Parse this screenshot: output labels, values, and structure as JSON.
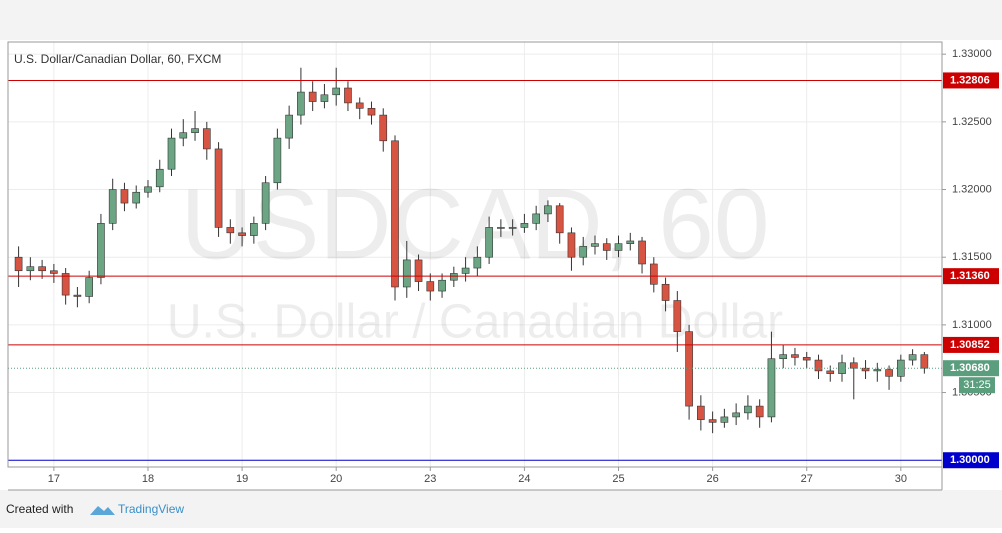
{
  "chart_data": {
    "type": "candlestick",
    "title": "U.S. Dollar/Canadian Dollar, 60, FXCM",
    "watermark": "USDCAD, 60",
    "watermark_sub": "U.S. Dollar / Canadian Dollar",
    "up_color": "#6ba583",
    "down_color": "#d75442",
    "xlim": [
      -11.7,
      226.5
    ],
    "xticks": [
      {
        "value": 0,
        "label": "17"
      },
      {
        "value": 24,
        "label": "18"
      },
      {
        "value": 48,
        "label": "19"
      },
      {
        "value": 72,
        "label": "20"
      },
      {
        "value": 96,
        "label": "23"
      },
      {
        "value": 120,
        "label": "24"
      },
      {
        "value": 144,
        "label": "25"
      },
      {
        "value": 168,
        "label": "26"
      },
      {
        "value": 192,
        "label": "27"
      },
      {
        "value": 216,
        "label": "30"
      }
    ],
    "ylim": [
      1.2995,
      1.3309
    ],
    "yticks": [
      {
        "value": 1.33,
        "label": "1.33000"
      },
      {
        "value": 1.325,
        "label": "1.32500"
      },
      {
        "value": 1.32,
        "label": "1.32000"
      },
      {
        "value": 1.315,
        "label": "1.31500"
      },
      {
        "value": 1.31,
        "label": "1.31000"
      },
      {
        "value": 1.305,
        "label": "1.30500"
      }
    ],
    "grid": true,
    "hlines": [
      {
        "value": 1.32806,
        "label": "1.32806",
        "color": "#cc0000"
      },
      {
        "value": 1.3136,
        "label": "1.31360",
        "color": "#cc0000"
      },
      {
        "value": 1.30852,
        "label": "1.30852",
        "color": "#cc0000"
      },
      {
        "value": 1.3,
        "label": "1.30000",
        "color": "#0000cc"
      }
    ],
    "last_price": {
      "value": 1.3068,
      "label": "1.30680",
      "color": "#5a9e7e"
    },
    "countdown": "31:25",
    "candles": {
      "x": [
        -9,
        -6,
        -3,
        0,
        3,
        6,
        9,
        12,
        15,
        18,
        21,
        24,
        27,
        30,
        33,
        36,
        39,
        42,
        45,
        48,
        51,
        54,
        57,
        60,
        63,
        66,
        69,
        72,
        75,
        78,
        81,
        84,
        87,
        90,
        93,
        96,
        99,
        102,
        105,
        108,
        111,
        114,
        117,
        120,
        123,
        126,
        129,
        132,
        135,
        138,
        141,
        144,
        147,
        150,
        153,
        156,
        159,
        162,
        165,
        168,
        171,
        174,
        177,
        180,
        183,
        186,
        189,
        192,
        195,
        198,
        201,
        204,
        207,
        210,
        213,
        216,
        219,
        222
      ],
      "open": [
        1.315,
        1.314,
        1.3143,
        1.314,
        1.3138,
        1.3122,
        1.3121,
        1.3135,
        1.3175,
        1.32,
        1.319,
        1.3198,
        1.3202,
        1.3215,
        1.3238,
        1.3242,
        1.3245,
        1.323,
        1.3172,
        1.3168,
        1.3166,
        1.3175,
        1.3205,
        1.3238,
        1.3255,
        1.3272,
        1.3265,
        1.327,
        1.3275,
        1.3264,
        1.326,
        1.3255,
        1.3236,
        1.3128,
        1.3148,
        1.3132,
        1.3125,
        1.3133,
        1.3138,
        1.3142,
        1.315,
        1.3172,
        1.3172,
        1.3172,
        1.3175,
        1.3182,
        1.3188,
        1.3168,
        1.315,
        1.3158,
        1.316,
        1.3155,
        1.316,
        1.3162,
        1.3145,
        1.313,
        1.3118,
        1.3095,
        1.304,
        1.303,
        1.3028,
        1.3032,
        1.3035,
        1.304,
        1.3032,
        1.3075,
        1.3078,
        1.3076,
        1.3074,
        1.3066,
        1.3064,
        1.3072,
        1.3068,
        1.3066,
        1.3067,
        1.3062,
        1.3074,
        1.3078
      ],
      "high": [
        1.3158,
        1.315,
        1.3148,
        1.3145,
        1.3142,
        1.3128,
        1.314,
        1.3182,
        1.3208,
        1.3205,
        1.3203,
        1.3207,
        1.3222,
        1.3245,
        1.3252,
        1.3258,
        1.325,
        1.3235,
        1.3178,
        1.3172,
        1.318,
        1.321,
        1.3245,
        1.3262,
        1.329,
        1.328,
        1.3278,
        1.329,
        1.328,
        1.3268,
        1.3265,
        1.326,
        1.324,
        1.3162,
        1.3152,
        1.3138,
        1.3138,
        1.3143,
        1.315,
        1.3158,
        1.318,
        1.3178,
        1.3178,
        1.3182,
        1.3188,
        1.3192,
        1.319,
        1.3172,
        1.3165,
        1.3166,
        1.3164,
        1.3166,
        1.3168,
        1.3165,
        1.315,
        1.3135,
        1.3125,
        1.31,
        1.3048,
        1.3036,
        1.3038,
        1.3042,
        1.3048,
        1.3045,
        1.3095,
        1.3085,
        1.3083,
        1.308,
        1.3078,
        1.307,
        1.3078,
        1.3076,
        1.3074,
        1.3072,
        1.307,
        1.3078,
        1.3082,
        1.308
      ],
      "low": [
        1.3128,
        1.3133,
        1.3134,
        1.3131,
        1.3115,
        1.3113,
        1.3116,
        1.313,
        1.317,
        1.3184,
        1.3186,
        1.3194,
        1.3198,
        1.321,
        1.3232,
        1.3236,
        1.3222,
        1.3165,
        1.316,
        1.3158,
        1.316,
        1.317,
        1.32,
        1.323,
        1.3248,
        1.3258,
        1.326,
        1.3262,
        1.3258,
        1.3252,
        1.3248,
        1.3228,
        1.3118,
        1.312,
        1.3125,
        1.3118,
        1.312,
        1.3128,
        1.3132,
        1.3136,
        1.3145,
        1.3165,
        1.3166,
        1.3168,
        1.317,
        1.3176,
        1.316,
        1.314,
        1.3144,
        1.3152,
        1.3148,
        1.315,
        1.3155,
        1.3138,
        1.3124,
        1.311,
        1.308,
        1.303,
        1.3022,
        1.302,
        1.3024,
        1.3026,
        1.303,
        1.3024,
        1.3028,
        1.3068,
        1.307,
        1.3068,
        1.306,
        1.3058,
        1.3058,
        1.3045,
        1.306,
        1.3058,
        1.3052,
        1.3058,
        1.307,
        1.3064
      ],
      "close": [
        1.314,
        1.3143,
        1.314,
        1.3138,
        1.3122,
        1.3121,
        1.3135,
        1.3175,
        1.32,
        1.319,
        1.3198,
        1.3202,
        1.3215,
        1.3238,
        1.3242,
        1.3245,
        1.323,
        1.3172,
        1.3168,
        1.3166,
        1.3175,
        1.3205,
        1.3238,
        1.3255,
        1.3272,
        1.3265,
        1.327,
        1.3275,
        1.3264,
        1.326,
        1.3255,
        1.3236,
        1.3128,
        1.3148,
        1.3132,
        1.3125,
        1.3133,
        1.3138,
        1.3142,
        1.315,
        1.3172,
        1.3172,
        1.3172,
        1.3175,
        1.3182,
        1.3188,
        1.3168,
        1.315,
        1.3158,
        1.316,
        1.3155,
        1.316,
        1.3162,
        1.3145,
        1.313,
        1.3118,
        1.3095,
        1.304,
        1.303,
        1.3028,
        1.3032,
        1.3035,
        1.304,
        1.3032,
        1.3075,
        1.3078,
        1.3076,
        1.3074,
        1.3066,
        1.3064,
        1.3072,
        1.3068,
        1.3066,
        1.3067,
        1.3062,
        1.3074,
        1.3078,
        1.3068
      ]
    }
  },
  "footer": {
    "created": "Created with",
    "brand": "TradingView"
  }
}
